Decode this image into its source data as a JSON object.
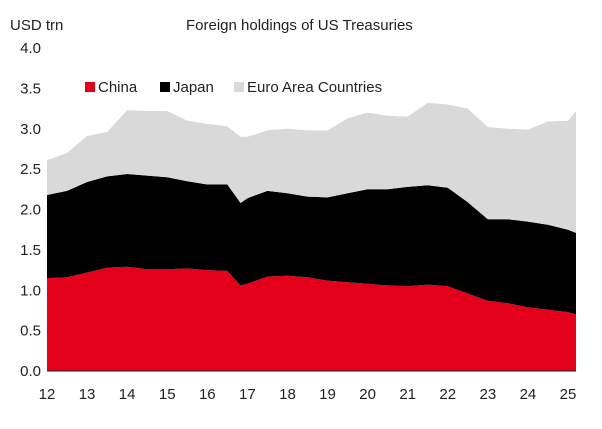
{
  "chart_data": {
    "type": "area",
    "stacked": true,
    "title": "Foreign holdings of US Treasuries",
    "ylabel": "USD trn",
    "xlabel": "",
    "ylim": [
      0,
      4
    ],
    "xlim": [
      2012,
      2025.2
    ],
    "y_ticks": [
      "0.0",
      "0.5",
      "1.0",
      "1.5",
      "2.0",
      "2.5",
      "3.0",
      "3.5",
      "4.0"
    ],
    "x_ticks": [
      "12",
      "13",
      "14",
      "15",
      "16",
      "17",
      "18",
      "19",
      "20",
      "21",
      "22",
      "23",
      "24",
      "25"
    ],
    "legend_position": "top-left",
    "grid": false,
    "x": [
      2012.0,
      2012.5,
      2013.0,
      2013.5,
      2014.0,
      2014.5,
      2015.0,
      2015.5,
      2016.0,
      2016.5,
      2016.83,
      2017.0,
      2017.5,
      2018.0,
      2018.5,
      2019.0,
      2019.5,
      2020.0,
      2020.5,
      2021.0,
      2021.5,
      2022.0,
      2022.5,
      2023.0,
      2023.5,
      2024.0,
      2024.5,
      2025.0,
      2025.2
    ],
    "series": [
      {
        "name": "China",
        "color": "#e2001a",
        "values": [
          1.15,
          1.16,
          1.22,
          1.28,
          1.29,
          1.26,
          1.26,
          1.27,
          1.25,
          1.24,
          1.06,
          1.08,
          1.17,
          1.18,
          1.16,
          1.12,
          1.1,
          1.08,
          1.06,
          1.05,
          1.07,
          1.05,
          0.96,
          0.87,
          0.84,
          0.79,
          0.76,
          0.73,
          0.7
        ]
      },
      {
        "name": "Japan",
        "color": "#000000",
        "values": [
          1.03,
          1.07,
          1.12,
          1.13,
          1.15,
          1.16,
          1.14,
          1.08,
          1.06,
          1.07,
          1.02,
          1.06,
          1.06,
          1.02,
          1.0,
          1.03,
          1.1,
          1.17,
          1.19,
          1.23,
          1.23,
          1.22,
          1.13,
          1.01,
          1.04,
          1.06,
          1.05,
          1.02,
          1.01
        ]
      },
      {
        "name": "Euro Area Countries",
        "color": "#d9d9d9",
        "values": [
          0.43,
          0.47,
          0.57,
          0.55,
          0.79,
          0.8,
          0.82,
          0.75,
          0.75,
          0.72,
          0.82,
          0.76,
          0.75,
          0.8,
          0.82,
          0.83,
          0.93,
          0.95,
          0.91,
          0.87,
          1.02,
          1.03,
          1.16,
          1.14,
          1.12,
          1.14,
          1.28,
          1.35,
          1.51
        ]
      }
    ]
  }
}
